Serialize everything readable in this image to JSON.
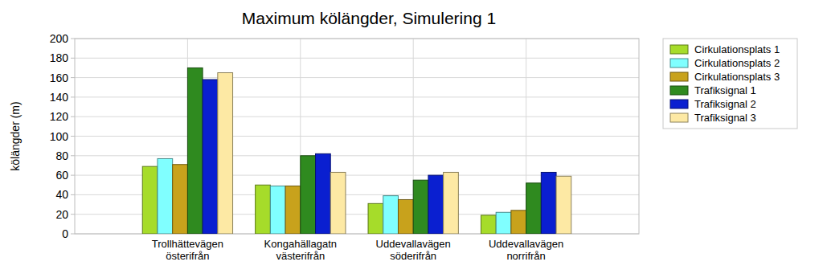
{
  "chart_data": {
    "type": "bar",
    "title": "Maximum kölängder, Simulering 1",
    "y_label": "kölängder (m)",
    "categories": [
      "Trollhättevägen österifrån",
      "Kongahällagatn västerifrån",
      "Uddevallavägen söderifrån",
      "Uddevallavägen norrifrån"
    ],
    "series": [
      {
        "name": "Cirkulationsplats 1",
        "color": "#a6dc2a",
        "values": [
          69,
          50,
          31,
          19
        ]
      },
      {
        "name": "Cirkulationsplats 2",
        "color": "#80ffff",
        "values": [
          77,
          49,
          39,
          22
        ]
      },
      {
        "name": "Cirkulationsplats 3",
        "color": "#c8a21c",
        "values": [
          71,
          49,
          35,
          24
        ]
      },
      {
        "name": "Trafiksignal 1",
        "color": "#2f8a1f",
        "values": [
          170,
          80,
          55,
          52
        ]
      },
      {
        "name": "Trafiksignal 2",
        "color": "#0a1fd0",
        "values": [
          158,
          82,
          60,
          63
        ]
      },
      {
        "name": "Trafiksignal 3",
        "color": "#fde9a4",
        "values": [
          165,
          63,
          63,
          59
        ]
      }
    ],
    "ylim": [
      0,
      200
    ],
    "yticks": [
      0,
      20,
      40,
      60,
      80,
      100,
      120,
      140,
      160,
      180,
      200
    ],
    "grid": true,
    "legend": "right"
  }
}
